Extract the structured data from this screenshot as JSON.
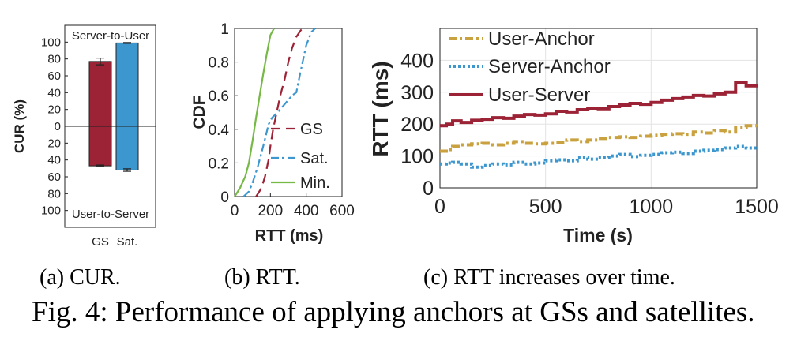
{
  "figure": {
    "caption": "Fig. 4: Performance of applying anchors at GSs and satellites.",
    "subcaptions": [
      "(a) CUR.",
      "(b) RTT.",
      "(c) RTT increases over time."
    ]
  },
  "colors": {
    "gs": "#9b2335",
    "sat": "#3d97cf",
    "min": "#77b947",
    "user_anchor": "#c9a13f",
    "server_anchor": "#3d97cf",
    "user_server": "#9b2335"
  },
  "chart_data": [
    {
      "type": "bar",
      "ylabel": "CUR (%)",
      "ylim": [
        -120,
        120
      ],
      "yticks": [
        100,
        80,
        60,
        40,
        20,
        0,
        -20,
        -40,
        -60,
        -80,
        -100
      ],
      "ytick_labels": [
        "100",
        "80",
        "60",
        "40",
        "20",
        "0",
        "20",
        "40",
        "60",
        "80",
        "100"
      ],
      "categories": [
        "GS",
        "Sat."
      ],
      "annotations": [
        "Server-to-User",
        "User-to-Server"
      ],
      "series": [
        {
          "name": "Server-to-User",
          "values": [
            77,
            99
          ],
          "errors": [
            4,
            0.5
          ]
        },
        {
          "name": "User-to-Server",
          "values": [
            -47,
            -52
          ],
          "errors": [
            1,
            1.5
          ]
        }
      ]
    },
    {
      "type": "line",
      "xlabel": "RTT (ms)",
      "ylabel": "CDF",
      "xlim": [
        0,
        600
      ],
      "ylim": [
        0,
        1
      ],
      "xticks": [
        0,
        200,
        400,
        600
      ],
      "yticks": [
        0,
        0.2,
        0.4,
        0.6,
        0.8,
        1
      ],
      "ytick_labels": [
        "0",
        "0.2",
        "0.4",
        "0.6",
        "0.8",
        "1"
      ],
      "legend": "bottom-right",
      "series": [
        {
          "name": "GS",
          "style": "dashed",
          "x": [
            120,
            150,
            170,
            190,
            200,
            215,
            235,
            255,
            280,
            300,
            320,
            345,
            370,
            385
          ],
          "y": [
            0,
            0.05,
            0.12,
            0.22,
            0.3,
            0.4,
            0.5,
            0.6,
            0.7,
            0.8,
            0.88,
            0.95,
            0.99,
            1
          ]
        },
        {
          "name": "Sat.",
          "style": "dashdot",
          "x": [
            50,
            80,
            100,
            130,
            160,
            190,
            210,
            240,
            280,
            320,
            345,
            360,
            380,
            400,
            430,
            450
          ],
          "y": [
            0,
            0.03,
            0.08,
            0.18,
            0.3,
            0.43,
            0.47,
            0.5,
            0.55,
            0.6,
            0.62,
            0.7,
            0.8,
            0.9,
            0.98,
            1
          ]
        },
        {
          "name": "Min.",
          "style": "solid",
          "x": [
            0,
            30,
            60,
            80,
            100,
            120,
            140,
            160,
            180,
            200,
            220
          ],
          "y": [
            0,
            0.05,
            0.12,
            0.2,
            0.33,
            0.47,
            0.6,
            0.73,
            0.85,
            0.96,
            1
          ]
        }
      ]
    },
    {
      "type": "line",
      "xlabel": "Time (s)",
      "ylabel": "RTT (ms)",
      "xlim": [
        0,
        1500
      ],
      "ylim": [
        0,
        500
      ],
      "xticks": [
        0,
        500,
        1000,
        1500
      ],
      "yticks": [
        0,
        100,
        200,
        300,
        400
      ],
      "grid": true,
      "legend": "top-left",
      "series": [
        {
          "name": "User-Anchor",
          "style": "dashdot",
          "x": [
            0,
            30,
            60,
            100,
            150,
            200,
            250,
            300,
            350,
            400,
            450,
            500,
            550,
            600,
            650,
            700,
            750,
            800,
            850,
            900,
            950,
            1000,
            1050,
            1100,
            1150,
            1200,
            1250,
            1300,
            1350,
            1400,
            1450,
            1500
          ],
          "y": [
            115,
            120,
            130,
            135,
            138,
            140,
            135,
            140,
            145,
            140,
            138,
            140,
            142,
            150,
            145,
            150,
            155,
            158,
            160,
            158,
            162,
            165,
            168,
            170,
            168,
            175,
            172,
            180,
            175,
            190,
            195,
            193
          ]
        },
        {
          "name": "Server-Anchor",
          "style": "dotted",
          "x": [
            0,
            30,
            60,
            100,
            150,
            200,
            250,
            300,
            350,
            400,
            450,
            500,
            550,
            600,
            650,
            700,
            750,
            800,
            850,
            900,
            950,
            1000,
            1050,
            1100,
            1150,
            1200,
            1250,
            1300,
            1350,
            1400,
            1450,
            1500
          ],
          "y": [
            75,
            78,
            80,
            75,
            65,
            70,
            75,
            72,
            80,
            75,
            78,
            85,
            88,
            85,
            95,
            90,
            95,
            100,
            105,
            98,
            102,
            105,
            110,
            112,
            108,
            115,
            118,
            120,
            125,
            130,
            125,
            118
          ]
        },
        {
          "name": "User-Server",
          "style": "solid",
          "x": [
            0,
            30,
            60,
            100,
            150,
            200,
            250,
            300,
            350,
            400,
            450,
            500,
            550,
            600,
            650,
            700,
            750,
            800,
            850,
            900,
            950,
            1000,
            1050,
            1100,
            1150,
            1200,
            1250,
            1300,
            1350,
            1400,
            1450,
            1500
          ],
          "y": [
            195,
            200,
            210,
            205,
            212,
            215,
            220,
            218,
            225,
            230,
            228,
            232,
            240,
            238,
            245,
            250,
            248,
            255,
            260,
            265,
            262,
            268,
            275,
            280,
            285,
            290,
            288,
            295,
            300,
            330,
            320,
            315
          ]
        }
      ]
    }
  ]
}
